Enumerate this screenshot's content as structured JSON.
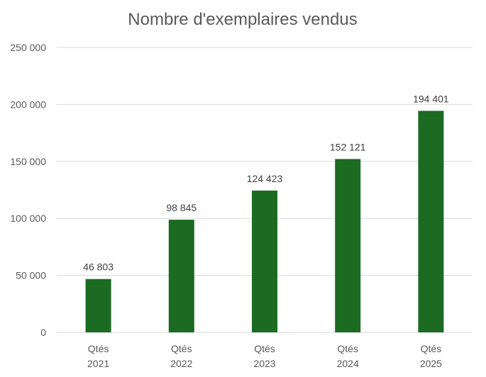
{
  "chart_data": {
    "type": "bar",
    "title": "Nombre d'exemplaires vendus",
    "xlabel": "",
    "ylabel": "",
    "categories": [
      [
        "Qtés",
        "2021"
      ],
      [
        "Qtés",
        "2022"
      ],
      [
        "Qtés",
        "2023"
      ],
      [
        "Qtés",
        "2024"
      ],
      [
        "Qtés",
        "2025"
      ]
    ],
    "values": [
      46803,
      98845,
      124423,
      152121,
      194401
    ],
    "data_labels": [
      "46 803",
      "98 845",
      "124 423",
      "152 121",
      "194 401"
    ],
    "ylim": [
      0,
      250000
    ],
    "yticks": [
      0,
      50000,
      100000,
      150000,
      200000,
      250000
    ],
    "ytick_labels": [
      "0",
      "50 000",
      "100 000",
      "150 000",
      "200 000",
      "250 000"
    ],
    "grid": true,
    "legend": false,
    "bar_color": "#1b6b23"
  }
}
